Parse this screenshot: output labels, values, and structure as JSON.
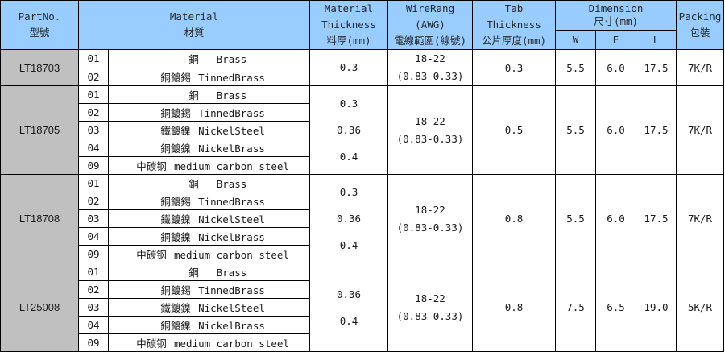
{
  "header": {
    "partno_en": "PartNo.",
    "partno_zh": "型號",
    "material_en": "Material",
    "material_zh": "材質",
    "thickness_en1": "Material",
    "thickness_en2": "Thickness",
    "thickness_zh": "料厚(mm)",
    "wire_en1": "WireRang",
    "wire_en2": "(AWG)",
    "wire_zh": "電線範圍(線號)",
    "tab_en1": "Tab",
    "tab_en2": "Thickness",
    "tab_zh": "公片厚度(mm)",
    "dim_en": "Dimension",
    "dim_zh": "尺寸(mm)",
    "dim_w": "W",
    "dim_e": "E",
    "dim_l": "L",
    "pack_en": "Packing",
    "pack_zh": "包裝"
  },
  "products": [
    {
      "part": "LT18703",
      "materials": [
        {
          "code": "01",
          "zh": "銅",
          "en": "Brass"
        },
        {
          "code": "02",
          "zh": "銅鍍錫",
          "en": "TinnedBrass"
        }
      ],
      "thickness": [
        "0.3"
      ],
      "wire": [
        "18-22",
        "(0.83-0.33)"
      ],
      "tab": "0.3",
      "w": "5.5",
      "e": "6.0",
      "l": "17.5",
      "packing": "7K/R"
    },
    {
      "part": "LT18705",
      "materials": [
        {
          "code": "01",
          "zh": "銅",
          "en": "Brass"
        },
        {
          "code": "02",
          "zh": "銅鍍錫",
          "en": "TinnedBrass"
        },
        {
          "code": "03",
          "zh": "鐵鍍鎳",
          "en": "NickelSteel"
        },
        {
          "code": "04",
          "zh": "銅鍍鎳",
          "en": "NickelBrass"
        },
        {
          "code": "09",
          "zh": "中碳钢",
          "en": "medium carbon steel"
        }
      ],
      "thickness": [
        "0.3",
        "0.36",
        "0.4"
      ],
      "wire": [
        "18-22",
        "(0.83-0.33)"
      ],
      "tab": "0.5",
      "w": "5.5",
      "e": "6.0",
      "l": "17.5",
      "packing": "7K/R"
    },
    {
      "part": "LT18708",
      "materials": [
        {
          "code": "01",
          "zh": "銅",
          "en": "Brass"
        },
        {
          "code": "02",
          "zh": "銅鍍錫",
          "en": "TinnedBrass"
        },
        {
          "code": "03",
          "zh": "鐵鍍鎳",
          "en": "NickelSteel"
        },
        {
          "code": "04",
          "zh": "銅鍍鎳",
          "en": "NickelBrass"
        },
        {
          "code": "09",
          "zh": "中碳钢",
          "en": "medium carbon steel"
        }
      ],
      "thickness": [
        "0.3",
        "0.36",
        "0.4"
      ],
      "wire": [
        "18-22",
        "(0.83-0.33)"
      ],
      "tab": "0.8",
      "w": "5.5",
      "e": "6.0",
      "l": "17.5",
      "packing": "7K/R"
    },
    {
      "part": "LT25008",
      "materials": [
        {
          "code": "01",
          "zh": "銅",
          "en": "Brass"
        },
        {
          "code": "02",
          "zh": "銅鍍錫",
          "en": "TinnedBrass"
        },
        {
          "code": "03",
          "zh": "鐵鍍鎳",
          "en": "NickelSteel"
        },
        {
          "code": "04",
          "zh": "銅鍍鎳",
          "en": "NickelBrass"
        },
        {
          "code": "09",
          "zh": "中碳钢",
          "en": "medium carbon steel"
        }
      ],
      "thickness": [
        "0.36",
        "0.4"
      ],
      "wire": [
        "18-22",
        "(0.83-0.33)"
      ],
      "tab": "0.8",
      "w": "7.5",
      "e": "6.5",
      "l": "19.0",
      "packing": "5K/R"
    }
  ]
}
